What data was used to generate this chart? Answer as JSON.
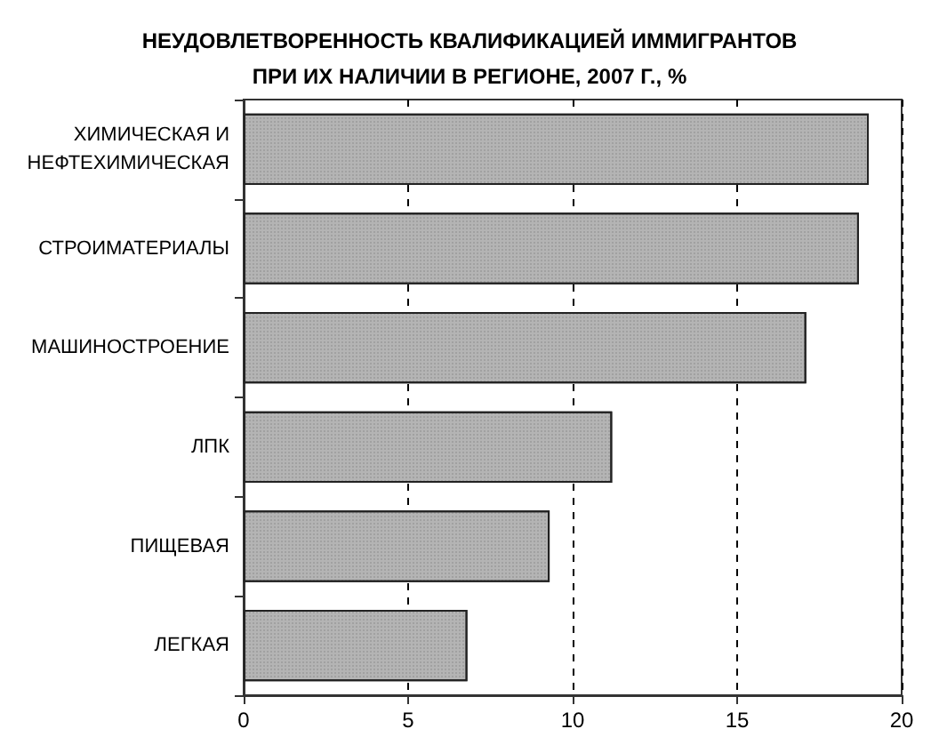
{
  "chart_data": {
    "type": "bar",
    "orientation": "horizontal",
    "title": "НЕУДОВЛЕТВОРЕННОСТЬ КВАЛИФИКАЦИЕЙ ИММИГРАНТОВ\nПРИ ИХ НАЛИЧИИ В РЕГИОНЕ, 2007 Г., %",
    "categories": [
      "ХИМИЧЕСКАЯ И\nНЕФТЕХИМИЧЕСКАЯ",
      "СТРОИМАТЕРИАЛЫ",
      "МАШИНОСТРОЕНИЕ",
      "ЛПК",
      "ПИЩЕВАЯ",
      "ЛЕГКАЯ"
    ],
    "values": [
      19.0,
      18.7,
      17.1,
      11.2,
      9.3,
      6.8
    ],
    "color": "#b4b4b4",
    "xlim": [
      0,
      20
    ],
    "xticks": [
      0,
      5,
      10,
      15,
      20
    ],
    "grid": "x"
  }
}
